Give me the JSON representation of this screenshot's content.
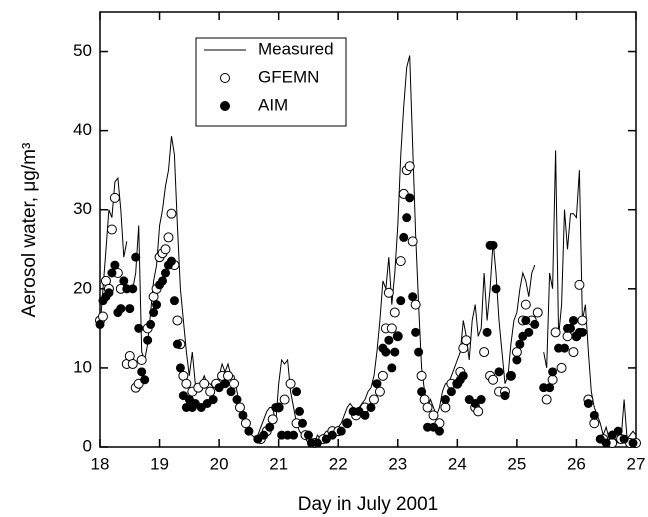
{
  "chart_data": {
    "type": "line-scatter",
    "xlabel": "Day in July 2001",
    "ylabel": "Aerosol water, μg/m³",
    "xlim": [
      18,
      27
    ],
    "xticks": [
      18,
      19,
      20,
      21,
      22,
      23,
      24,
      25,
      26,
      27
    ],
    "ylim": [
      0,
      55
    ],
    "yticks": [
      0,
      10,
      20,
      30,
      40,
      50
    ],
    "legend": "upper-left",
    "series": [
      {
        "name": "Measured",
        "kind": "line",
        "color": "#000000",
        "x": [
          18.0,
          18.05,
          18.1,
          18.15,
          18.2,
          18.25,
          18.3,
          18.35,
          18.4,
          18.45,
          18.5,
          18.55,
          18.6,
          18.65,
          18.7,
          18.75,
          18.8,
          18.85,
          18.9,
          18.95,
          19.0,
          19.05,
          19.1,
          19.15,
          19.2,
          19.25,
          19.3,
          19.35,
          19.4,
          19.45,
          19.5,
          19.55,
          19.6,
          19.65,
          19.7,
          19.75,
          19.8,
          19.85,
          19.9,
          19.95,
          20.0,
          20.05,
          20.1,
          20.15,
          20.2,
          20.25,
          20.3,
          20.35,
          20.4,
          20.45,
          20.5,
          20.55,
          20.6,
          20.65,
          20.7,
          20.75,
          20.8,
          20.85,
          20.9,
          20.95,
          21.0,
          21.05,
          21.1,
          21.15,
          21.2,
          21.25,
          21.3,
          21.35,
          21.4,
          21.45,
          21.5,
          21.55,
          21.6,
          21.65,
          21.7,
          21.75,
          21.8,
          21.85,
          21.9,
          21.95,
          22.0,
          22.05,
          22.1,
          22.15,
          22.2,
          22.25,
          22.3,
          22.35,
          22.4,
          22.45,
          22.5,
          22.55,
          22.6,
          22.65,
          22.7,
          22.75,
          22.8,
          22.85,
          22.9,
          22.95,
          23.0,
          23.05,
          23.1,
          23.15,
          23.2,
          23.25,
          23.3,
          23.35,
          23.4,
          23.45,
          23.5,
          23.55,
          23.6,
          23.65,
          23.7,
          23.75,
          23.8,
          23.85,
          23.9,
          23.95,
          24.0,
          24.05,
          24.1,
          24.15,
          24.2,
          24.25,
          24.3,
          24.35,
          24.4,
          24.45,
          24.5,
          24.55,
          24.6,
          24.65,
          24.7,
          24.75,
          24.8,
          24.85,
          24.9,
          24.95,
          25.0,
          25.05,
          25.1,
          25.15,
          25.2,
          25.25,
          25.3,
          25.35,
          25.45,
          25.5,
          25.55,
          25.6,
          25.65,
          25.7,
          25.75,
          25.8,
          25.85,
          25.9,
          25.95,
          26.0,
          26.05,
          26.1,
          26.15,
          26.2,
          26.25,
          26.3,
          26.35,
          26.4,
          26.45,
          26.5,
          26.55,
          26.6,
          26.65,
          26.7,
          26.75,
          26.8,
          26.85,
          26.9,
          26.95,
          27.0
        ],
        "values": [
          15,
          20,
          25,
          30,
          29,
          33.5,
          34,
          30,
          24,
          26,
          null,
          20,
          22,
          28,
          12,
          11,
          13,
          17,
          21,
          23,
          28,
          30,
          33,
          35,
          39.3,
          37,
          28,
          20,
          16,
          12,
          9,
          12,
          8,
          7,
          8,
          9,
          8,
          8,
          7.5,
          8,
          9,
          10.5,
          9.5,
          10.5,
          9,
          9,
          7,
          5,
          3.5,
          2.5,
          2,
          1.5,
          1.2,
          1.5,
          2.5,
          3.5,
          4.5,
          5,
          5,
          3,
          8,
          11,
          10.5,
          11,
          7,
          5,
          3,
          2,
          1.5,
          1,
          0.5,
          1,
          0.5,
          1.5,
          1,
          1.5,
          2,
          2,
          2.5,
          2,
          2.5,
          3,
          4,
          5,
          5.5,
          5,
          4.5,
          5,
          5.5,
          6,
          7,
          7.5,
          9,
          12,
          16,
          21,
          20,
          24,
          18,
          22,
          28,
          37,
          43,
          48,
          49.5,
          38,
          27,
          18,
          10,
          7,
          5,
          6,
          5,
          4,
          5,
          7,
          8,
          8,
          9,
          10,
          11,
          12,
          16,
          14,
          11,
          16,
          18,
          14,
          15,
          22,
          16,
          20,
          26,
          22,
          16,
          12,
          8,
          9,
          13,
          16,
          17,
          20,
          22,
          21,
          19,
          22,
          23,
          null,
          12,
          10,
          22,
          20,
          37.5,
          14,
          18,
          30,
          25,
          29.5,
          29.5,
          29,
          35,
          16,
          18,
          12,
          7,
          5,
          4,
          3,
          1.5,
          2.5,
          1,
          2,
          1,
          0.5,
          1,
          6,
          1,
          1.5,
          2,
          1.5
        ]
      },
      {
        "name": "GFEMN",
        "kind": "open-circle",
        "color": "#000000",
        "x": [
          18.0,
          18.05,
          18.1,
          18.15,
          18.2,
          18.25,
          18.3,
          18.35,
          18.45,
          18.5,
          18.55,
          18.6,
          18.65,
          18.7,
          18.8,
          18.9,
          18.95,
          19.0,
          19.05,
          19.1,
          19.15,
          19.2,
          19.25,
          19.3,
          19.35,
          19.4,
          19.45,
          19.55,
          19.65,
          19.75,
          19.85,
          19.95,
          20.05,
          20.15,
          20.25,
          20.35,
          20.45,
          20.7,
          20.8,
          20.9,
          21.0,
          21.1,
          21.2,
          21.3,
          21.45,
          21.6,
          21.75,
          21.9,
          22.0,
          22.15,
          22.3,
          22.45,
          22.6,
          22.7,
          22.75,
          22.8,
          22.85,
          22.9,
          22.95,
          23.0,
          23.05,
          23.1,
          23.15,
          23.2,
          23.25,
          23.3,
          23.4,
          23.45,
          23.5,
          23.6,
          23.7,
          23.8,
          23.9,
          24.0,
          24.05,
          24.1,
          24.15,
          24.3,
          24.35,
          24.45,
          24.55,
          24.6,
          24.7,
          24.8,
          24.9,
          25.0,
          25.1,
          25.15,
          25.25,
          25.35,
          25.5,
          25.6,
          25.65,
          25.75,
          25.85,
          25.95,
          26.0,
          26.05,
          26.1,
          26.2,
          26.3,
          26.45,
          26.6,
          26.75,
          26.9,
          27.0
        ],
        "values": [
          16,
          16.5,
          21,
          20,
          27.5,
          31.5,
          22,
          20,
          10.5,
          11.5,
          10.5,
          7.5,
          8,
          11,
          15,
          19,
          20,
          24,
          24.5,
          25,
          26.5,
          29.5,
          23,
          16,
          13,
          9,
          8,
          7,
          7.5,
          8,
          7,
          8,
          9,
          9,
          8,
          5,
          3,
          1,
          2,
          3.5,
          5,
          6,
          8,
          3,
          1.5,
          0.5,
          1,
          2,
          2,
          3,
          4,
          5,
          6,
          7,
          9,
          15,
          19.5,
          15,
          17,
          14,
          23.5,
          32,
          35,
          35.5,
          26,
          18,
          9,
          6,
          5,
          4,
          3,
          5,
          8,
          8,
          9.5,
          12.5,
          13.5,
          5,
          4.5,
          12,
          9,
          8.5,
          7,
          7,
          9,
          12,
          16,
          18,
          16,
          17,
          6,
          8.5,
          14.5,
          10,
          14,
          12,
          14,
          20.5,
          16,
          6,
          3,
          1,
          0.5,
          1,
          0.5,
          0.5
        ]
      },
      {
        "name": "AIM",
        "kind": "filled-circle",
        "color": "#000000",
        "x": [
          18.0,
          18.05,
          18.1,
          18.15,
          18.2,
          18.25,
          18.3,
          18.35,
          18.4,
          18.45,
          18.5,
          18.55,
          18.6,
          18.65,
          18.7,
          18.75,
          18.8,
          18.85,
          18.9,
          18.95,
          19.0,
          19.05,
          19.1,
          19.15,
          19.2,
          19.25,
          19.3,
          19.35,
          19.4,
          19.45,
          19.5,
          19.55,
          19.6,
          19.7,
          19.8,
          19.9,
          20.0,
          20.1,
          20.2,
          20.3,
          20.4,
          20.5,
          20.65,
          20.75,
          20.85,
          20.95,
          21.0,
          21.05,
          21.15,
          21.25,
          21.3,
          21.35,
          21.4,
          21.5,
          21.55,
          21.65,
          21.8,
          21.9,
          22.05,
          22.15,
          22.25,
          22.35,
          22.45,
          22.55,
          22.65,
          22.75,
          22.8,
          22.85,
          22.9,
          22.95,
          23.0,
          23.05,
          23.1,
          23.15,
          23.2,
          23.25,
          23.3,
          23.35,
          23.4,
          23.5,
          23.6,
          23.7,
          23.8,
          23.9,
          24.0,
          24.05,
          24.1,
          24.2,
          24.3,
          24.4,
          24.5,
          24.55,
          24.6,
          24.65,
          24.7,
          24.8,
          24.9,
          25.0,
          25.05,
          25.1,
          25.15,
          25.2,
          25.3,
          25.45,
          25.55,
          25.6,
          25.7,
          25.8,
          25.85,
          25.9,
          25.95,
          26.0,
          26.05,
          26.1,
          26.2,
          26.3,
          26.4,
          26.5,
          26.6,
          26.7,
          26.8,
          26.95
        ],
        "values": [
          15.5,
          18.5,
          19,
          19.5,
          22,
          23,
          17,
          17.5,
          21,
          20,
          17.5,
          20,
          24,
          15,
          9.5,
          8.5,
          13.5,
          15.5,
          17,
          18,
          20.5,
          21,
          22,
          23,
          23.5,
          18.5,
          13,
          10,
          6.5,
          5,
          6,
          5,
          5.5,
          5,
          5.5,
          6,
          7.5,
          8,
          7,
          6,
          4,
          2,
          1,
          1.5,
          2.5,
          5,
          5,
          1.5,
          1.5,
          1.5,
          7,
          4.5,
          3,
          1.5,
          0.5,
          0.5,
          1,
          1.5,
          2,
          3,
          4.5,
          4.5,
          4,
          5,
          8,
          12.5,
          12,
          13.5,
          10,
          12,
          14,
          18.5,
          26.5,
          29,
          31.5,
          19,
          14.5,
          12,
          7,
          2.5,
          2.5,
          2,
          6,
          7,
          8,
          8.5,
          9,
          6,
          5.5,
          6,
          14.5,
          25.5,
          25.5,
          20,
          9.5,
          6.5,
          9,
          11,
          13,
          14,
          16,
          14.5,
          15.5,
          7.5,
          7.5,
          9.5,
          12.5,
          12.5,
          15,
          15,
          16,
          14,
          14.5,
          14.5,
          5.5,
          4,
          1,
          0.5,
          1.5,
          2,
          1,
          0.5
        ]
      }
    ]
  }
}
